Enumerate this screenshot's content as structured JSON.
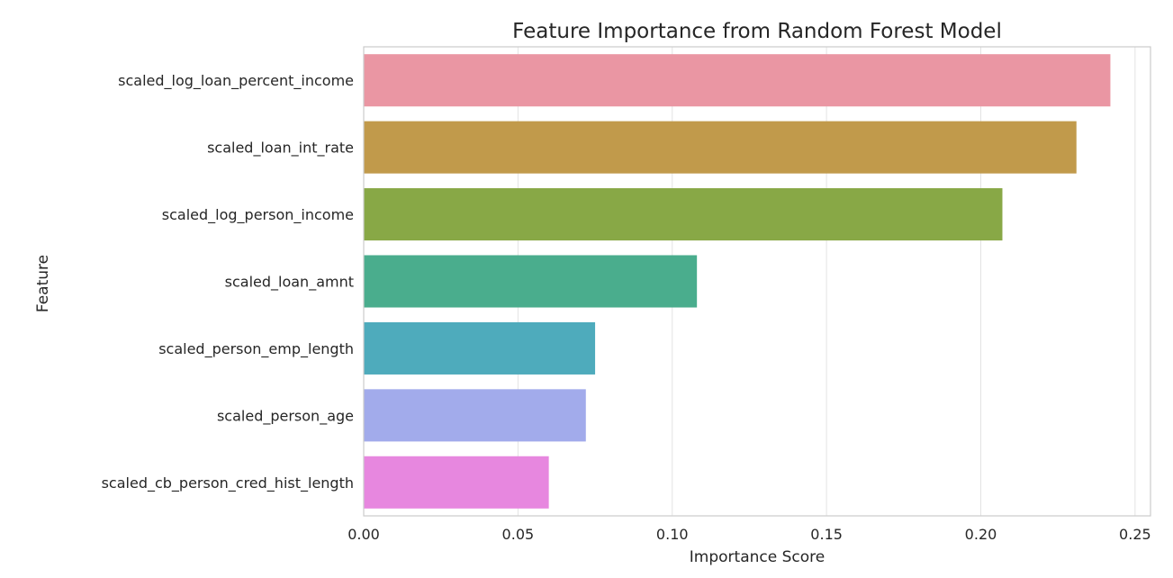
{
  "chart_data": {
    "type": "bar",
    "orientation": "horizontal",
    "title": "Feature Importance from Random Forest Model",
    "xlabel": "Importance Score",
    "ylabel": "Feature",
    "xlim": [
      0.0,
      0.255
    ],
    "xticks": [
      0.0,
      0.05,
      0.1,
      0.15,
      0.2,
      0.25
    ],
    "xtick_labels": [
      "0.00",
      "0.05",
      "0.10",
      "0.15",
      "0.20",
      "0.25"
    ],
    "grid": "vertical",
    "categories": [
      "scaled_log_loan_percent_income",
      "scaled_loan_int_rate",
      "scaled_log_person_income",
      "scaled_loan_amnt",
      "scaled_person_emp_length",
      "scaled_person_age",
      "scaled_cb_person_cred_hist_length"
    ],
    "values": [
      0.242,
      0.231,
      0.207,
      0.108,
      0.075,
      0.072,
      0.06
    ],
    "colors": [
      "#ea96a3",
      "#c19a4b",
      "#88a846",
      "#4aad8d",
      "#4eabbc",
      "#a2abeb",
      "#e787df"
    ]
  }
}
